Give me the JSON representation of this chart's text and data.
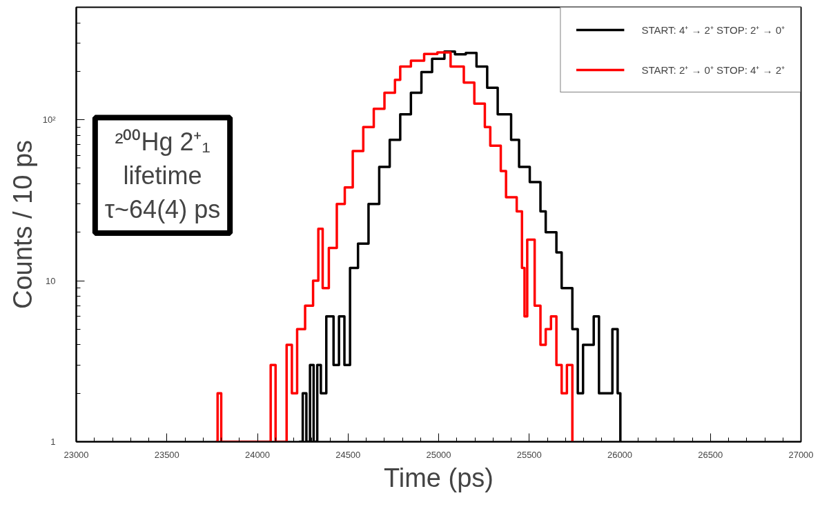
{
  "chart_data": {
    "type": "step",
    "xlabel": "Time (ps)",
    "ylabel": "Counts / 10 ps",
    "annotations": [
      "²⁰⁰Hg 2⁺₁",
      "lifetime",
      "τ~64(4) ps"
    ],
    "log": "y",
    "grid": false,
    "legend": "top right",
    "line_style": "solid",
    "marker": "none",
    "xlim": [
      23000,
      27000
    ],
    "xticks": [
      23000,
      23500,
      24000,
      24500,
      25000,
      25500,
      26000,
      26500,
      27000
    ],
    "ylim": [
      1,
      500
    ],
    "yticks": [
      1,
      {
        "value": 10,
        "label": "10"
      },
      {
        "value": 100,
        "label": "10²"
      }
    ],
    "series": [
      {
        "name": "START: 4⁺ → 2⁺ STOP: 2⁺ → 0⁺",
        "color": "#000000",
        "x": [
          24230,
          24250,
          24270,
          24290,
          24310,
          24330,
          24350,
          24380,
          24420,
          24450,
          24480,
          24511,
          24555,
          24613,
          24672,
          24730,
          24788,
          24847,
          24905,
          24964,
          25032,
          25090,
          25150,
          25209,
          25268,
          25326,
          25400,
          25444,
          25503,
          25562,
          25591,
          25650,
          25679,
          25738,
          25768,
          25797,
          25856,
          25885,
          25920,
          25959,
          25988,
          26003
        ],
        "values": [
          1,
          2,
          1,
          3,
          1,
          3,
          2,
          6,
          3,
          6,
          3,
          12,
          17,
          30,
          51,
          75,
          108,
          147,
          198,
          239,
          265,
          255,
          260,
          214,
          158,
          108,
          75,
          51,
          41,
          27,
          20,
          15,
          9,
          5,
          2,
          4,
          6,
          2,
          2,
          5,
          2,
          1
        ]
      },
      {
        "name": "START: 2⁺ → 0⁺ STOP: 4⁺ → 2⁺",
        "color": "#ff0000",
        "x": [
          23770,
          23780,
          23800,
          24073,
          24100,
          24161,
          24190,
          24219,
          24263,
          24307,
          24336,
          24360,
          24394,
          24438,
          24482,
          24526,
          24584,
          24642,
          24701,
          24759,
          24788,
          24847,
          24920,
          24993,
          25066,
          25139,
          25197,
          25255,
          25285,
          25343,
          25372,
          25431,
          25460,
          25474,
          25489,
          25503,
          25530,
          25562,
          25591,
          25620,
          25650,
          25679,
          25708,
          25738
        ],
        "values": [
          1,
          2,
          1,
          3,
          1,
          4,
          2,
          5,
          7,
          10,
          21,
          9,
          16,
          30,
          38,
          64,
          90,
          117,
          147,
          177,
          214,
          233,
          256,
          262,
          214,
          170,
          126,
          90,
          69,
          48,
          33,
          27,
          12,
          6,
          18,
          18,
          7,
          4,
          5,
          6,
          3,
          2,
          3,
          1
        ]
      }
    ]
  }
}
